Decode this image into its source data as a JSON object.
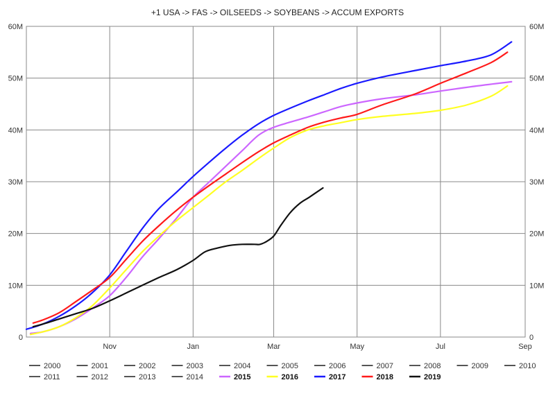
{
  "chart_data": {
    "type": "line",
    "title": "+1 USA -> FAS -> OILSEEDS -> SOYBEANS -> ACCUM EXPORTS",
    "xlabel": "",
    "ylabel": "",
    "x_axis": {
      "unit": "day of marketing year (Sep 1 = 0)",
      "range": [
        0,
        365
      ],
      "ticks": [
        {
          "value": 61,
          "label": "Nov"
        },
        {
          "value": 122,
          "label": "Jan"
        },
        {
          "value": 181,
          "label": "Mar"
        },
        {
          "value": 242,
          "label": "May"
        },
        {
          "value": 303,
          "label": "Jul"
        },
        {
          "value": 365,
          "label": "Sep"
        }
      ]
    },
    "y_axis": {
      "range": [
        0,
        60000000
      ],
      "ticks": [
        {
          "value": 0,
          "label": "0"
        },
        {
          "value": 10000000,
          "label": "10M"
        },
        {
          "value": 20000000,
          "label": "20M"
        },
        {
          "value": 30000000,
          "label": "30M"
        },
        {
          "value": 40000000,
          "label": "40M"
        },
        {
          "value": 50000000,
          "label": "50M"
        },
        {
          "value": 60000000,
          "label": "60M"
        }
      ],
      "right_axis_mirrored": true
    },
    "grid": true,
    "legend_position": "bottom",
    "legend": [
      {
        "name": "2000",
        "color": "#555555",
        "active": false
      },
      {
        "name": "2001",
        "color": "#555555",
        "active": false
      },
      {
        "name": "2002",
        "color": "#555555",
        "active": false
      },
      {
        "name": "2003",
        "color": "#555555",
        "active": false
      },
      {
        "name": "2004",
        "color": "#555555",
        "active": false
      },
      {
        "name": "2005",
        "color": "#555555",
        "active": false
      },
      {
        "name": "2006",
        "color": "#555555",
        "active": false
      },
      {
        "name": "2007",
        "color": "#555555",
        "active": false
      },
      {
        "name": "2008",
        "color": "#555555",
        "active": false
      },
      {
        "name": "2009",
        "color": "#555555",
        "active": false
      },
      {
        "name": "2010",
        "color": "#555555",
        "active": false
      },
      {
        "name": "2011",
        "color": "#555555",
        "active": false
      },
      {
        "name": "2012",
        "color": "#555555",
        "active": false
      },
      {
        "name": "2013",
        "color": "#555555",
        "active": false
      },
      {
        "name": "2014",
        "color": "#555555",
        "active": false
      },
      {
        "name": "2015",
        "color": "#cc66ff",
        "active": true
      },
      {
        "name": "2016",
        "color": "#ffff22",
        "active": true
      },
      {
        "name": "2017",
        "color": "#1a1aff",
        "active": true
      },
      {
        "name": "2018",
        "color": "#ff1a1a",
        "active": true
      },
      {
        "name": "2019",
        "color": "#111111",
        "active": true
      }
    ],
    "series": [
      {
        "name": "2015",
        "color": "#cc66ff",
        "x": [
          3,
          12,
          24,
          36,
          48,
          61,
          73,
          85,
          97,
          110,
          122,
          134,
          146,
          158,
          170,
          181,
          193,
          206,
          218,
          230,
          242,
          260,
          285,
          303,
          330,
          355
        ],
        "y": [
          700000,
          1000000,
          2000000,
          3500000,
          5500000,
          8000000,
          11500000,
          15500000,
          19000000,
          23000000,
          27000000,
          30000000,
          33000000,
          36000000,
          39000000,
          40500000,
          41500000,
          42500000,
          43500000,
          44500000,
          45200000,
          46000000,
          46800000,
          47500000,
          48500000,
          49300000
        ]
      },
      {
        "name": "2016",
        "color": "#ffff22",
        "x": [
          3,
          12,
          24,
          36,
          48,
          61,
          73,
          85,
          97,
          110,
          122,
          134,
          146,
          158,
          170,
          181,
          193,
          206,
          218,
          230,
          242,
          260,
          285,
          303,
          322,
          340,
          352
        ],
        "y": [
          500000,
          1000000,
          2000000,
          3700000,
          6000000,
          9500000,
          13000000,
          16500000,
          19500000,
          22500000,
          25000000,
          27500000,
          30000000,
          32200000,
          34500000,
          36500000,
          38500000,
          40000000,
          40800000,
          41400000,
          42000000,
          42600000,
          43200000,
          43800000,
          44800000,
          46500000,
          48500000
        ]
      },
      {
        "name": "2017",
        "color": "#1a1aff",
        "x": [
          0,
          12,
          24,
          36,
          48,
          61,
          73,
          85,
          97,
          110,
          122,
          134,
          146,
          158,
          170,
          181,
          193,
          206,
          218,
          230,
          242,
          260,
          285,
          303,
          322,
          340,
          355
        ],
        "y": [
          1500000,
          2500000,
          4000000,
          6000000,
          8500000,
          12000000,
          16500000,
          21000000,
          24800000,
          28000000,
          31000000,
          33800000,
          36500000,
          39000000,
          41200000,
          42800000,
          44200000,
          45600000,
          46800000,
          48000000,
          49000000,
          50200000,
          51500000,
          52400000,
          53300000,
          54500000,
          57000000
        ]
      },
      {
        "name": "2018",
        "color": "#ff1a1a",
        "x": [
          5,
          12,
          24,
          36,
          48,
          61,
          73,
          85,
          97,
          110,
          122,
          134,
          146,
          158,
          170,
          181,
          193,
          206,
          218,
          230,
          242,
          260,
          285,
          303,
          322,
          340,
          352
        ],
        "y": [
          2700000,
          3300000,
          4700000,
          6800000,
          9000000,
          11500000,
          15000000,
          18500000,
          21500000,
          24500000,
          27000000,
          29300000,
          31500000,
          33700000,
          35800000,
          37500000,
          39000000,
          40500000,
          41500000,
          42300000,
          43000000,
          44800000,
          47000000,
          49000000,
          51000000,
          53000000,
          55000000
        ]
      },
      {
        "name": "2019",
        "color": "#111111",
        "x": [
          5,
          12,
          24,
          36,
          48,
          61,
          73,
          85,
          97,
          110,
          122,
          131,
          140,
          149,
          158,
          167,
          171,
          176,
          181,
          186,
          193,
          200,
          207,
          217
        ],
        "y": [
          2000000,
          2500000,
          3500000,
          4500000,
          5500000,
          7000000,
          8500000,
          10000000,
          11500000,
          13000000,
          14800000,
          16500000,
          17200000,
          17700000,
          17900000,
          17900000,
          17900000,
          18500000,
          19500000,
          21500000,
          24000000,
          25800000,
          27000000,
          28800000
        ]
      }
    ]
  }
}
